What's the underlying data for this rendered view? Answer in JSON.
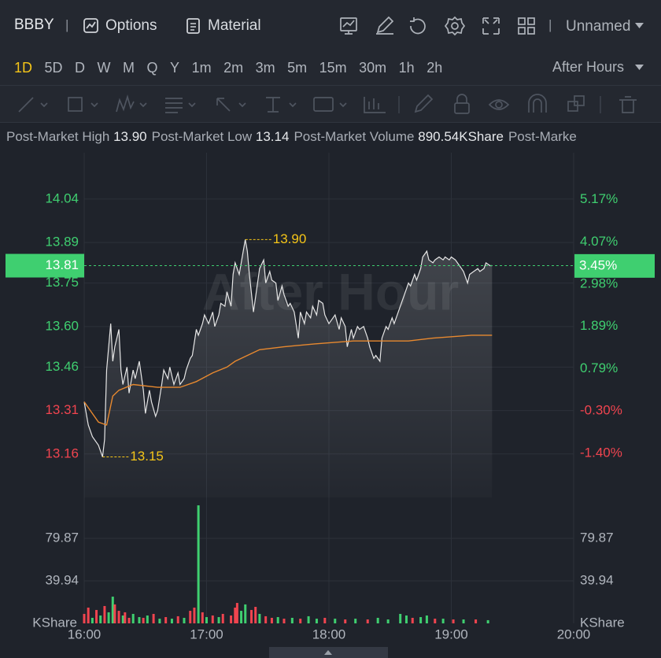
{
  "header": {
    "symbol": "BBBY",
    "separator": "|",
    "options": "Options",
    "material": "Material",
    "layout": "Unnamed"
  },
  "timeframes": {
    "items": [
      "1D",
      "5D",
      "D",
      "W",
      "M",
      "Q",
      "Y",
      "1m",
      "2m",
      "3m",
      "5m",
      "15m",
      "30m",
      "1h",
      "2h"
    ],
    "selected": 0,
    "session": "After Hours"
  },
  "stats": [
    {
      "label": "Post-Market High",
      "value": "13.90"
    },
    {
      "label": "Post-Market Low",
      "value": "13.14"
    },
    {
      "label": "Post-Market Volume",
      "value": "890.54KShare"
    },
    {
      "label": "Post-Marke"
    }
  ],
  "chart_data": [
    {
      "type": "line",
      "watermark": "After Hour",
      "x": [
        960,
        962,
        964,
        967,
        969,
        970,
        971,
        973,
        974,
        975,
        977,
        978,
        979,
        981,
        982,
        984,
        985,
        987,
        989,
        990,
        992,
        993,
        995,
        996,
        998,
        999,
        1001,
        1002,
        1004,
        1006,
        1007,
        1009,
        1010,
        1012,
        1013,
        1015,
        1016,
        1018,
        1019,
        1021,
        1023,
        1024,
        1026,
        1027,
        1029,
        1030,
        1032,
        1033,
        1034,
        1036,
        1038,
        1039,
        1040,
        1041,
        1043,
        1045,
        1046,
        1048,
        1049,
        1051,
        1052,
        1054,
        1055,
        1057,
        1058,
        1060,
        1061,
        1063,
        1065,
        1066,
        1068,
        1069,
        1071,
        1072,
        1074,
        1075,
        1077,
        1078,
        1080,
        1082,
        1083,
        1085,
        1086,
        1088,
        1089,
        1091,
        1092,
        1094,
        1095,
        1097,
        1099,
        1100,
        1102,
        1103,
        1105,
        1106,
        1108,
        1109,
        1111,
        1112,
        1114,
        1116,
        1117,
        1119,
        1120,
        1122,
        1123,
        1125,
        1126,
        1128,
        1129,
        1131,
        1132,
        1134,
        1136,
        1137,
        1139,
        1140,
        1142,
        1143,
        1145,
        1146,
        1148,
        1149,
        1151,
        1153,
        1154,
        1156,
        1157,
        1159,
        1160
      ],
      "series": [
        {
          "color": "#e6e6e6",
          "values": [
            13.34,
            13.26,
            13.22,
            13.19,
            13.15,
            13.21,
            13.45,
            13.61,
            13.48,
            13.53,
            13.59,
            13.45,
            13.4,
            13.46,
            13.37,
            13.45,
            13.42,
            13.48,
            13.38,
            13.3,
            13.38,
            13.34,
            13.29,
            13.31,
            13.4,
            13.45,
            13.42,
            13.46,
            13.4,
            13.44,
            13.4,
            13.42,
            13.45,
            13.49,
            13.5,
            13.59,
            13.57,
            13.61,
            13.64,
            13.61,
            13.65,
            13.6,
            13.64,
            13.68,
            13.67,
            13.72,
            13.67,
            13.78,
            13.82,
            13.78,
            13.86,
            13.9,
            13.86,
            13.78,
            13.65,
            13.75,
            13.8,
            13.83,
            13.75,
            13.79,
            13.76,
            13.75,
            13.69,
            13.74,
            13.71,
            13.67,
            13.68,
            13.65,
            13.56,
            13.65,
            13.61,
            13.65,
            13.63,
            13.67,
            13.64,
            13.69,
            13.68,
            13.64,
            13.61,
            13.63,
            13.64,
            13.59,
            13.63,
            13.6,
            13.53,
            13.59,
            13.56,
            13.6,
            13.59,
            13.6,
            13.56,
            13.53,
            13.49,
            13.5,
            13.48,
            13.56,
            13.6,
            13.59,
            13.63,
            13.61,
            13.65,
            13.69,
            13.71,
            13.75,
            13.74,
            13.78,
            13.76,
            13.8,
            13.84,
            13.86,
            13.83,
            13.82,
            13.83,
            13.84,
            13.83,
            13.84,
            13.83,
            13.84,
            13.83,
            13.82,
            13.8,
            13.79,
            13.75,
            13.78,
            13.79,
            13.8,
            13.79,
            13.8,
            13.82,
            13.81,
            13.81
          ]
        },
        {
          "color": "#e8892f",
          "x": [
            960,
            963,
            967,
            971,
            974,
            977,
            984,
            996,
            1007,
            1015,
            1023,
            1030,
            1034,
            1040,
            1046,
            1058,
            1073,
            1092,
            1108,
            1119,
            1131,
            1150,
            1160
          ],
          "values": [
            13.34,
            13.31,
            13.27,
            13.26,
            13.36,
            13.38,
            13.4,
            13.39,
            13.39,
            13.41,
            13.44,
            13.46,
            13.48,
            13.5,
            13.52,
            13.53,
            13.54,
            13.55,
            13.55,
            13.55,
            13.56,
            13.57,
            13.57
          ]
        }
      ],
      "xlim": [
        960,
        1200
      ],
      "ylim": [
        13.01,
        14.2
      ],
      "yticks": [
        14.04,
        13.89,
        13.75,
        {
          "value": 13.6,
          "label": "13.60"
        },
        13.46,
        13.31,
        13.16
      ],
      "y2lim": [
        -2.54,
        6.38
      ],
      "y2ticks": [
        {
          "value": 5.17,
          "label": "5.17%"
        },
        {
          "value": 4.07,
          "label": "4.07%"
        },
        {
          "value": 2.98,
          "label": "2.98%"
        },
        {
          "value": 1.89,
          "label": "1.89%"
        },
        {
          "value": 0.79,
          "label": "0.79%"
        },
        {
          "value": -0.3,
          "label": "-0.30%"
        },
        {
          "value": -1.4,
          "label": "-1.40%"
        }
      ],
      "up_color": "#3fcf70",
      "down_color": "#f0444f",
      "annotation_color": "#f5c518",
      "grid": true,
      "current": {
        "value": 13.81,
        "change": {
          "value": 3.45,
          "label": "3.45%"
        }
      },
      "annotations": [
        {
          "label": "13.90",
          "x": 1039,
          "value": 13.9
        },
        {
          "label": "13.15",
          "x": 969,
          "value": 13.15
        }
      ]
    },
    {
      "type": "bar",
      "unit": "KShare",
      "x": [
        960,
        962,
        964,
        966,
        968,
        970,
        972,
        974,
        975,
        977,
        979,
        980,
        982,
        984,
        987,
        989,
        991,
        994,
        997,
        1000,
        1003,
        1006,
        1009,
        1012,
        1014,
        1016,
        1018,
        1020,
        1023,
        1026,
        1028,
        1032,
        1034,
        1035,
        1037,
        1039,
        1042,
        1044,
        1046,
        1049,
        1052,
        1055,
        1058,
        1062,
        1066,
        1070,
        1074,
        1078,
        1083,
        1088,
        1093,
        1099,
        1104,
        1109,
        1115,
        1118,
        1121,
        1125,
        1128,
        1132,
        1136,
        1141,
        1146,
        1152,
        1158
      ],
      "values": [
        8.9,
        14.8,
        5.2,
        12.6,
        7.4,
        16.3,
        10.4,
        25.1,
        17.8,
        11.8,
        7.4,
        10.4,
        5.2,
        8.9,
        5.9,
        5.2,
        7.4,
        8.9,
        4.4,
        5.9,
        4.4,
        6.7,
        5.2,
        11.8,
        14.8,
        110.9,
        10.4,
        5.9,
        7.4,
        5.9,
        8.9,
        7.4,
        14.8,
        19.2,
        11.8,
        17.8,
        12.6,
        15.5,
        8.9,
        6.7,
        5.2,
        5.9,
        4.4,
        5.2,
        4.4,
        6.7,
        4.4,
        5.2,
        4.4,
        3.7,
        4.4,
        3.7,
        5.2,
        3.7,
        8.9,
        7.4,
        5.2,
        5.9,
        7.4,
        4.4,
        4.4,
        3.7,
        3.7,
        3.7,
        3.0
      ],
      "colors": [
        "#f0444f",
        "#f0444f",
        "#3fcf70",
        "#f0444f",
        "#3fcf70",
        "#f0444f",
        "#3fcf70",
        "#3fcf70",
        "#f0444f",
        "#f0444f",
        "#3fcf70",
        "#f0444f",
        "#f0444f",
        "#3fcf70",
        "#3fcf70",
        "#f0444f",
        "#3fcf70",
        "#f0444f",
        "#3fcf70",
        "#f0444f",
        "#3fcf70",
        "#f0444f",
        "#3fcf70",
        "#f0444f",
        "#f0444f",
        "#3fcf70",
        "#f0444f",
        "#3fcf70",
        "#f0444f",
        "#3fcf70",
        "#f0444f",
        "#f0444f",
        "#f0444f",
        "#f0444f",
        "#3fcf70",
        "#3fcf70",
        "#f0444f",
        "#f0444f",
        "#3fcf70",
        "#f0444f",
        "#f0444f",
        "#3fcf70",
        "#f0444f",
        "#3fcf70",
        "#f0444f",
        "#3fcf70",
        "#3fcf70",
        "#f0444f",
        "#3fcf70",
        "#f0444f",
        "#3fcf70",
        "#f0444f",
        "#3fcf70",
        "#3fcf70",
        "#3fcf70",
        "#3fcf70",
        "#f0444f",
        "#3fcf70",
        "#3fcf70",
        "#f0444f",
        "#3fcf70",
        "#f0444f",
        "#3fcf70",
        "#f0444f",
        "#3fcf70"
      ],
      "xlim": [
        960,
        1200
      ],
      "xticks": [
        {
          "value": 960,
          "label": "16:00"
        },
        {
          "value": 1020,
          "label": "17:00"
        },
        {
          "value": 1080,
          "label": "18:00"
        },
        {
          "value": 1140,
          "label": "19:00"
        },
        {
          "value": 1200,
          "label": "20:00"
        }
      ],
      "ylim": [
        0,
        112.4
      ],
      "yticks": [
        39.94,
        79.87
      ]
    }
  ]
}
